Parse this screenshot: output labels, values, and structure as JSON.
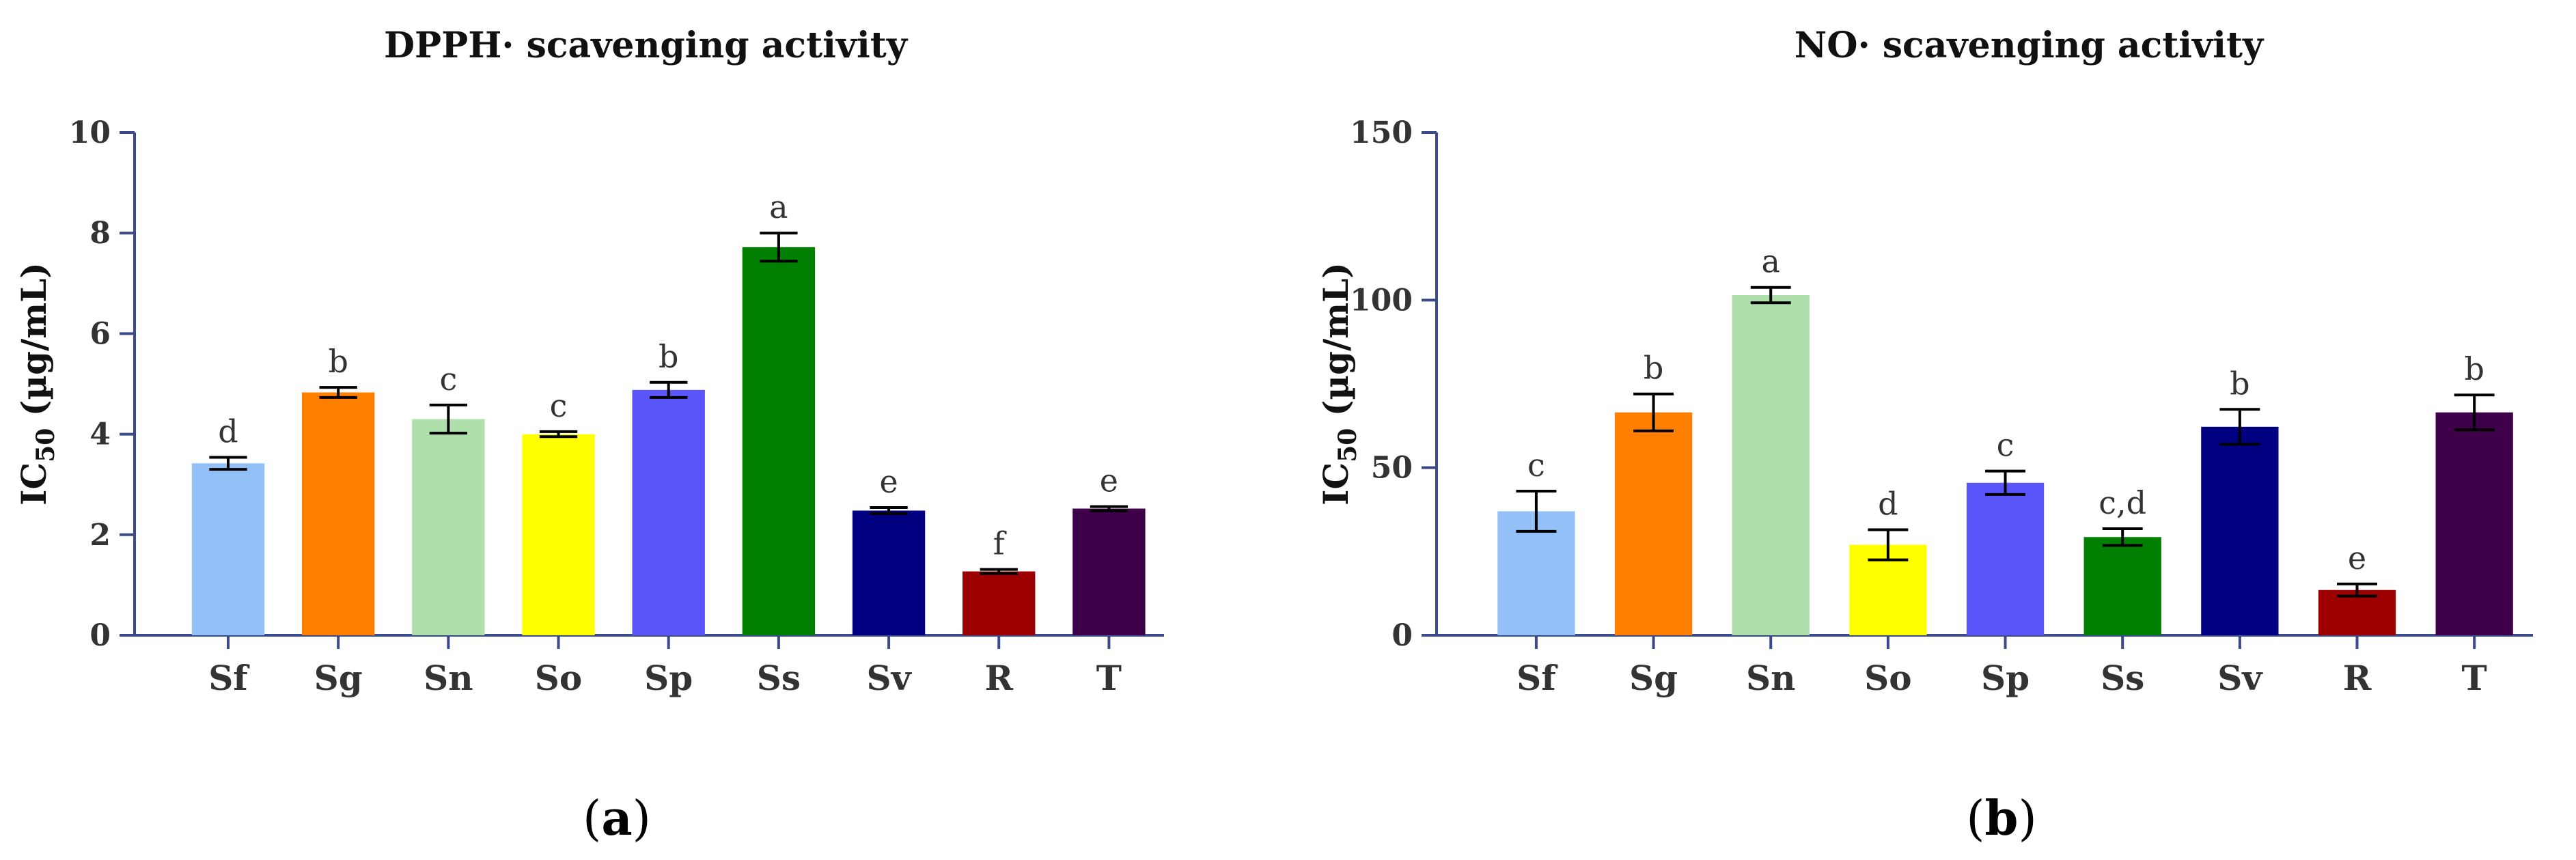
{
  "chart_data": [
    {
      "type": "bar",
      "title": "DPPH· scavenging activity",
      "ylabel_main": "IC",
      "ylabel_sub": "50",
      "ylabel_rest": " (µg/mL)",
      "ylim": [
        0,
        10
      ],
      "yticks": [
        0,
        2,
        4,
        6,
        8,
        10
      ],
      "categories": [
        "Sf",
        "Sg",
        "Sn",
        "So",
        "Sp",
        "Ss",
        "Sv",
        "R",
        "T"
      ],
      "values": [
        3.42,
        4.83,
        4.3,
        4.0,
        4.88,
        7.72,
        2.48,
        1.27,
        2.52
      ],
      "errors": [
        0.12,
        0.1,
        0.28,
        0.05,
        0.15,
        0.28,
        0.06,
        0.04,
        0.04
      ],
      "significance": [
        "d",
        "b",
        "c",
        "c",
        "b",
        "a",
        "e",
        "f",
        "e"
      ],
      "colors": [
        "#93c0f7",
        "#ff7f00",
        "#afe0ac",
        "#ffff00",
        "#5a55f8",
        "#007f00",
        "#000080",
        "#9d0000",
        "#3f004a"
      ],
      "panel_label": "a"
    },
    {
      "type": "bar",
      "title": "NO· scavenging activity",
      "ylabel_main": "IC",
      "ylabel_sub": "50",
      "ylabel_rest": " (µg/mL)",
      "ylim": [
        0,
        150
      ],
      "yticks": [
        0,
        50,
        100,
        150
      ],
      "categories": [
        "Sf",
        "Sg",
        "Sn",
        "So",
        "Sp",
        "Ss",
        "Sv",
        "R",
        "T"
      ],
      "values": [
        37,
        66.5,
        101.5,
        27,
        45.5,
        29.3,
        62.2,
        13.5,
        66.5
      ],
      "errors": [
        6,
        5.5,
        2.3,
        4.5,
        3.5,
        2.5,
        5.2,
        1.8,
        5.2
      ],
      "significance": [
        "c",
        "b",
        "a",
        "d",
        "c",
        "c,d",
        "b",
        "e",
        "b"
      ],
      "colors": [
        "#93c0f7",
        "#ff7f00",
        "#afe0ac",
        "#ffff00",
        "#5a55f8",
        "#007f00",
        "#000080",
        "#9d0000",
        "#3f004a"
      ],
      "panel_label": "b"
    }
  ]
}
